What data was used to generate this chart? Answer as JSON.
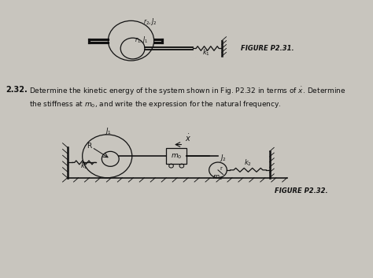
{
  "bg_color": "#c8c5be",
  "text_color": "#1a1a1a",
  "fig_width": 4.74,
  "fig_height": 3.53,
  "dpi": 100,
  "figure_label1": "FIGURE P2.31.",
  "figure_label2": "FIGURE P2.32.",
  "line_color": "#111111"
}
